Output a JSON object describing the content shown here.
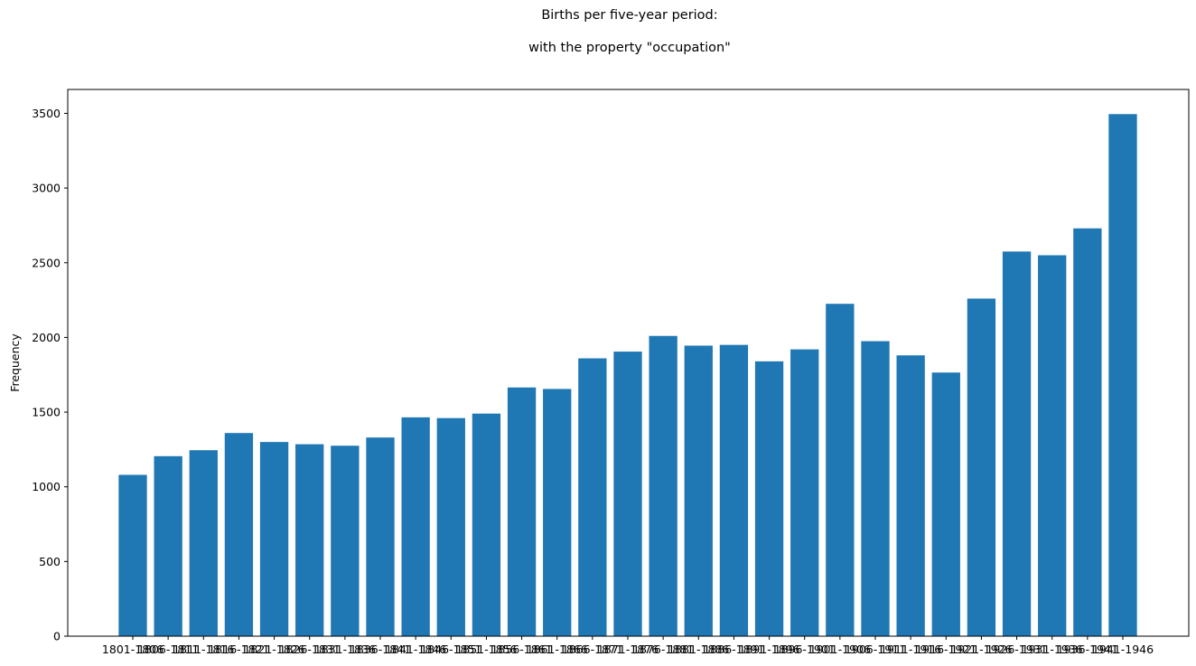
{
  "chart_data": {
    "type": "bar",
    "title": "Births per five-year period:",
    "subtitle": "with the property \"occupation\"",
    "xlabel": "",
    "ylabel": "Frequency",
    "ylim": [
      0,
      3660
    ],
    "yticks": [
      0,
      500,
      1000,
      1500,
      2000,
      2500,
      3000,
      3500
    ],
    "grid": false,
    "bar_color": "#1f77b4",
    "categories": [
      "1801-1806",
      "1806-1811",
      "1811-1816",
      "1816-1821",
      "1821-1826",
      "1826-1831",
      "1831-1836",
      "1836-1841",
      "1841-1846",
      "1846-1851",
      "1851-1856",
      "1856-1861",
      "1861-1866",
      "1866-1871",
      "1871-1876",
      "1876-1881",
      "1881-1886",
      "1886-1891",
      "1891-1896",
      "1896-1901",
      "1901-1906",
      "1906-1911",
      "1911-1916",
      "1916-1921",
      "1921-1926",
      "1926-1931",
      "1931-1936",
      "1936-1941",
      "1941-1946"
    ],
    "values": [
      1080,
      1205,
      1245,
      1360,
      1300,
      1285,
      1275,
      1330,
      1465,
      1460,
      1490,
      1665,
      1655,
      1860,
      1905,
      2010,
      1945,
      1950,
      1840,
      1920,
      2225,
      1975,
      1880,
      1765,
      2260,
      2575,
      2550,
      2730,
      3495
    ]
  }
}
